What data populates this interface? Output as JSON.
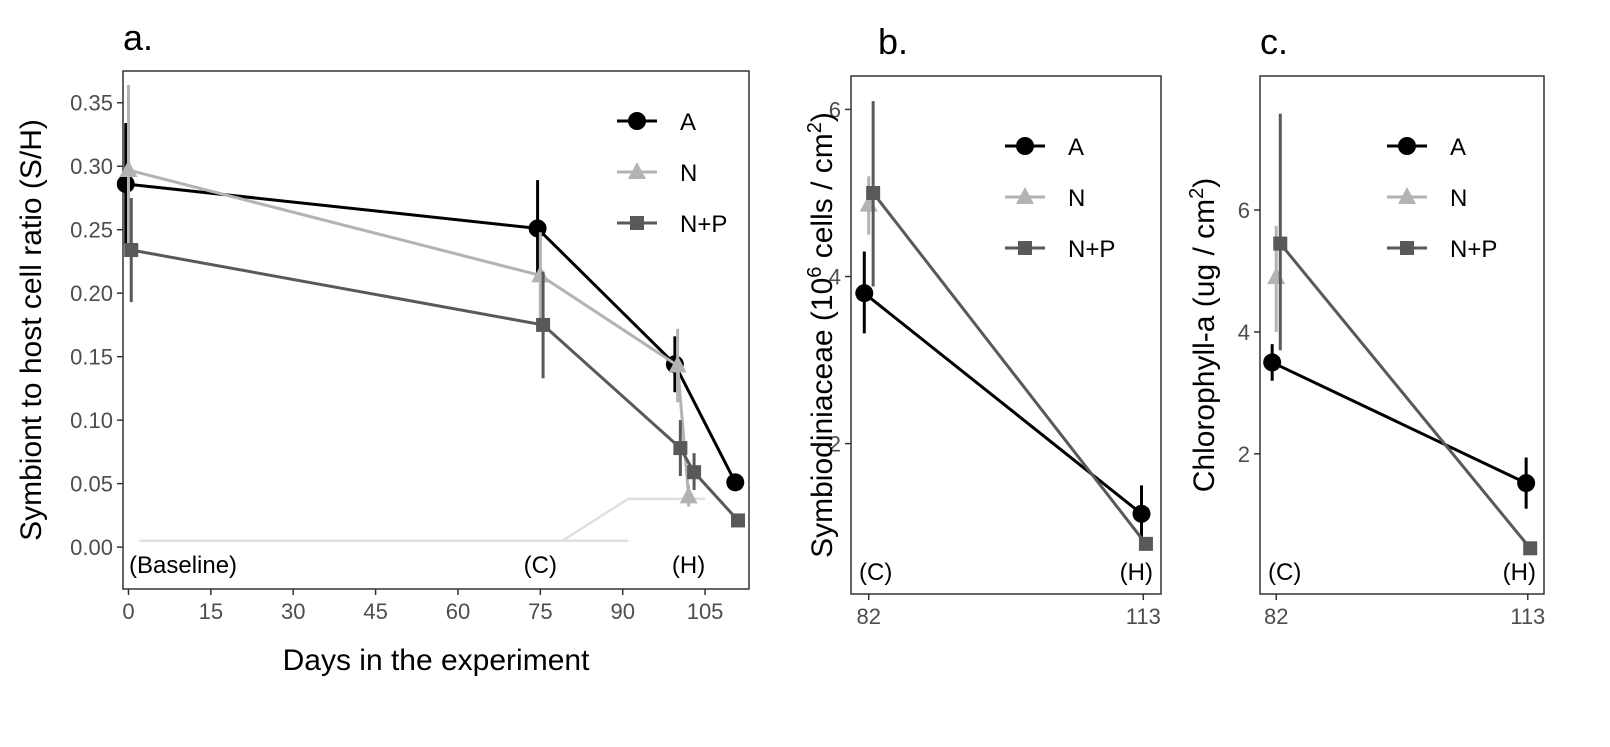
{
  "chart_data": [
    {
      "panel_label": "a.",
      "type": "line",
      "xlabel": "Days in the experiment",
      "ylabel": "Symbiont to host cell ratio (S/H)",
      "xlim": [
        -1,
        113
      ],
      "ylim": [
        -0.033,
        0.375
      ],
      "xticks": [
        0,
        15,
        30,
        45,
        60,
        75,
        90,
        105
      ],
      "yticks": [
        0.0,
        0.05,
        0.1,
        0.15,
        0.2,
        0.25,
        0.3,
        0.35
      ],
      "ytick_labels": [
        "0.00",
        "0.05",
        "0.10",
        "0.15",
        "0.20",
        "0.25",
        "0.30",
        "0.35"
      ],
      "grid": false,
      "legend_position": "top-right",
      "annotations": [
        {
          "text": "(Baseline)",
          "x": 9
        },
        {
          "text": "(C)",
          "x": 75
        },
        {
          "text": "(H)",
          "x": 102
        }
      ],
      "series": [
        {
          "name": "A",
          "marker": "circle",
          "color": "#000000",
          "points": [
            {
              "x": -0.5,
              "y": 0.286,
              "lo": 0.238,
              "hi": 0.334
            },
            {
              "x": 74.5,
              "y": 0.251,
              "lo": 0.213,
              "hi": 0.289
            },
            {
              "x": 99.5,
              "y": 0.144,
              "lo": 0.122,
              "hi": 0.166
            },
            {
              "x": 110.5,
              "y": 0.051,
              "lo": 0.046,
              "hi": 0.056
            }
          ]
        },
        {
          "name": "N",
          "marker": "triangle",
          "color": "#b3b3b3",
          "points": [
            {
              "x": 0.0,
              "y": 0.297,
              "lo": 0.23,
              "hi": 0.364
            },
            {
              "x": 75.0,
              "y": 0.214,
              "lo": 0.18,
              "hi": 0.248
            },
            {
              "x": 100.0,
              "y": 0.143,
              "lo": 0.114,
              "hi": 0.172
            },
            {
              "x": 102.0,
              "y": 0.04,
              "lo": 0.032,
              "hi": 0.049
            }
          ]
        },
        {
          "name": "N+P",
          "marker": "square",
          "color": "#595959",
          "points": [
            {
              "x": 0.5,
              "y": 0.234,
              "lo": 0.193,
              "hi": 0.275
            },
            {
              "x": 75.5,
              "y": 0.175,
              "lo": 0.133,
              "hi": 0.217
            },
            {
              "x": 100.5,
              "y": 0.078,
              "lo": 0.056,
              "hi": 0.1
            },
            {
              "x": 103.0,
              "y": 0.059,
              "lo": 0.045,
              "hi": 0.074
            },
            {
              "x": 111.0,
              "y": 0.021,
              "lo": 0.018,
              "hi": 0.024
            }
          ]
        }
      ],
      "background_lines": [
        {
          "color": "#e0e0e0",
          "points": [
            [
              2,
              0.005
            ],
            [
              91,
              0.005
            ]
          ]
        },
        {
          "color": "#e0e0e0",
          "points": [
            [
              79,
              0.005
            ],
            [
              91,
              0.038
            ],
            [
              105,
              0.038
            ]
          ]
        }
      ]
    },
    {
      "panel_label": "b.",
      "type": "line",
      "xlabel": "",
      "ylabel": "Symbiodiniaceae (10",
      "ylabel_superscript": "6",
      "ylabel_rest": " cells / cm",
      "ylabel_unit_power": "2",
      "ylabel_close": ")",
      "xlim": [
        80,
        115
      ],
      "ylim": [
        0.2,
        6.4
      ],
      "xticks": [
        82,
        113
      ],
      "yticks": [
        2,
        4,
        6
      ],
      "grid": false,
      "legend_position": "top-right",
      "annotations": [
        {
          "text": "(C)",
          "x": 82
        },
        {
          "text": "(H)",
          "x": 113
        }
      ],
      "series": [
        {
          "name": "A",
          "marker": "circle",
          "color": "#000000",
          "points": [
            {
              "x": 81.5,
              "y": 3.8,
              "lo": 3.32,
              "hi": 4.3
            },
            {
              "x": 112.8,
              "y": 1.16,
              "lo": 0.82,
              "hi": 1.5
            }
          ]
        },
        {
          "name": "N",
          "marker": "triangle",
          "color": "#b3b3b3",
          "points": [
            {
              "x": 82.0,
              "y": 4.86,
              "lo": 4.5,
              "hi": 5.2
            }
          ]
        },
        {
          "name": "N+P",
          "marker": "square",
          "color": "#595959",
          "points": [
            {
              "x": 82.5,
              "y": 5.0,
              "lo": 3.88,
              "hi": 6.1
            },
            {
              "x": 113.3,
              "y": 0.8,
              "lo": 0.8,
              "hi": 0.8
            }
          ]
        }
      ]
    },
    {
      "panel_label": "c.",
      "type": "line",
      "xlabel": "",
      "ylabel": "Chlorophyll-a (ug / cm",
      "ylabel_unit_power": "2",
      "ylabel_close": ")",
      "xlim": [
        80,
        115
      ],
      "ylim": [
        -0.3,
        8.2
      ],
      "xticks": [
        82,
        113
      ],
      "yticks": [
        2,
        4,
        6
      ],
      "grid": false,
      "legend_position": "top-right",
      "annotations": [
        {
          "text": "(C)",
          "x": 82
        },
        {
          "text": "(H)",
          "x": 113
        }
      ],
      "series": [
        {
          "name": "A",
          "marker": "circle",
          "color": "#000000",
          "points": [
            {
              "x": 81.5,
              "y": 3.5,
              "lo": 3.2,
              "hi": 3.8
            },
            {
              "x": 112.8,
              "y": 1.52,
              "lo": 1.1,
              "hi": 1.94
            }
          ]
        },
        {
          "name": "N",
          "marker": "triangle",
          "color": "#b3b3b3",
          "points": [
            {
              "x": 82.0,
              "y": 4.9,
              "lo": 4.0,
              "hi": 5.74
            }
          ]
        },
        {
          "name": "N+P",
          "marker": "square",
          "color": "#595959",
          "points": [
            {
              "x": 82.5,
              "y": 5.45,
              "lo": 3.7,
              "hi": 7.58
            },
            {
              "x": 113.3,
              "y": 0.45,
              "lo": 0.45,
              "hi": 0.45
            }
          ]
        }
      ]
    }
  ]
}
